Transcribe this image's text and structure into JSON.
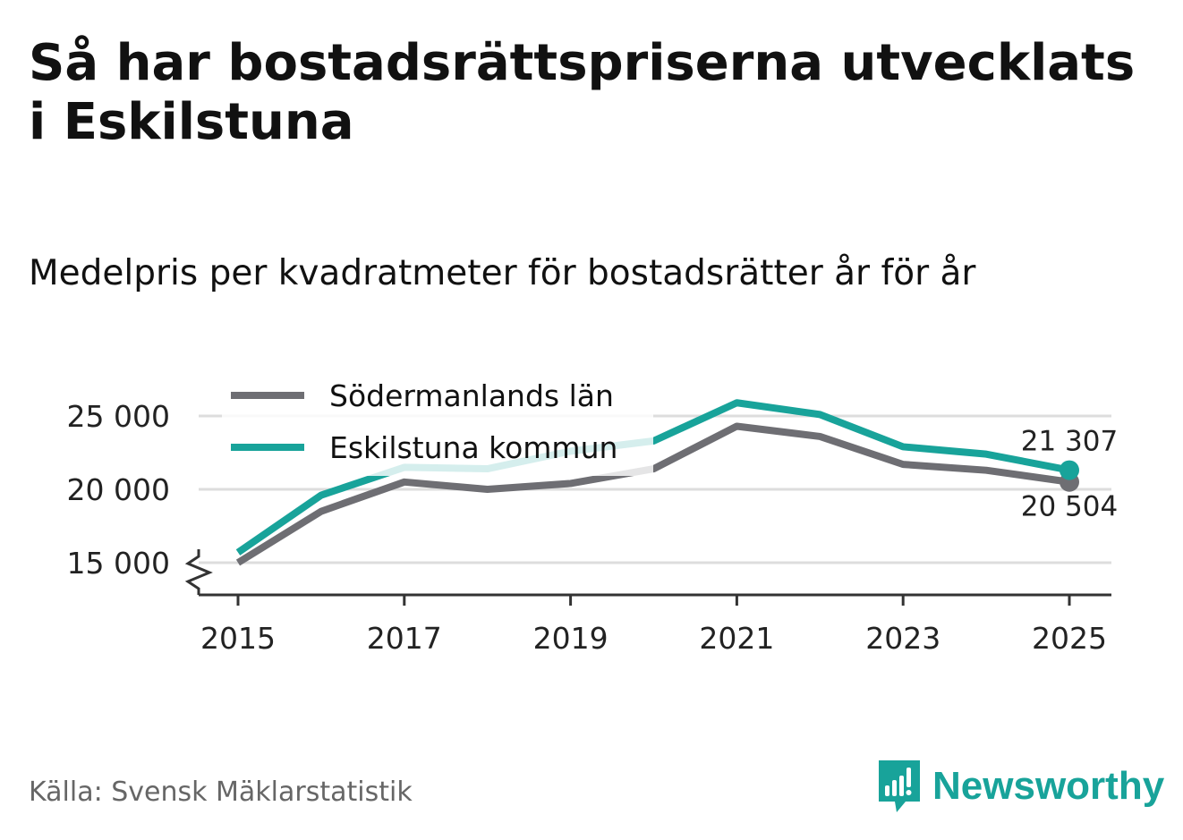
{
  "title": "Så har bostadsrättspriserna utvecklats i Eskilstuna",
  "subtitle": "Medelpris per kvadratmeter för bostadsrätter år för år",
  "source": "Källa: Svensk Mäklarstatistik",
  "brand": {
    "name": "Newsworthy",
    "icon": "newsworthy-logo-icon"
  },
  "colors": {
    "lan": "#6e6e73",
    "kommun": "#18a39a",
    "grid": "#dddddd",
    "axis": "#333333"
  },
  "chart_data": {
    "type": "line",
    "title": "Medelpris per kvadratmeter för bostadsrätter år för år",
    "xlabel": "",
    "ylabel": "",
    "x": [
      2015,
      2016,
      2017,
      2018,
      2019,
      2020,
      2021,
      2022,
      2023,
      2024,
      2025
    ],
    "x_ticks": [
      "2015",
      "2017",
      "2019",
      "2021",
      "2023",
      "2025"
    ],
    "y_ticks": [
      "15 000",
      "20 000",
      "25 000"
    ],
    "y_tick_values": [
      15000,
      20000,
      25000
    ],
    "ylim": [
      13000,
      27000
    ],
    "grid": true,
    "legend": "top-left",
    "series": [
      {
        "name": "Södermanlands län",
        "color": "#6e6e73",
        "values": [
          15000,
          18500,
          20500,
          20000,
          20400,
          21400,
          24300,
          23600,
          21700,
          21300,
          20504
        ]
      },
      {
        "name": "Eskilstuna kommun",
        "color": "#18a39a",
        "values": [
          15700,
          19600,
          21500,
          21400,
          22600,
          23300,
          25900,
          25100,
          22900,
          22400,
          21307
        ]
      }
    ],
    "end_labels": [
      {
        "series": "Eskilstuna kommun",
        "text": "21 307",
        "position": "above"
      },
      {
        "series": "Södermanlands län",
        "text": "20 504",
        "position": "below"
      }
    ]
  }
}
